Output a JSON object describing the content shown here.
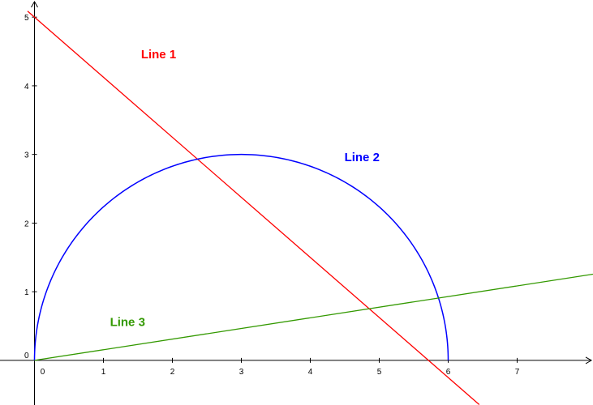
{
  "chart_data": {
    "type": "line",
    "title": "",
    "xlabel": "",
    "ylabel": "",
    "xlim": [
      -0.5,
      8.1
    ],
    "ylim": [
      -0.65,
      5.25
    ],
    "x_ticks": [
      0,
      1,
      2,
      3,
      4,
      5,
      6,
      7
    ],
    "y_ticks": [
      0,
      1,
      2,
      3,
      4,
      5
    ],
    "x_tick_labels": [
      "0",
      "1",
      "2",
      "3",
      "4",
      "5",
      "6",
      "7"
    ],
    "y_tick_labels": [
      "0",
      "1",
      "2",
      "3",
      "4",
      "5"
    ],
    "grid": false,
    "axes_color": "#000000",
    "series": [
      {
        "name": "Line 1",
        "kind": "line",
        "equation": "y = 5 - 0.875x",
        "color": "#ff0000",
        "x": [
          -0.1,
          6.45
        ],
        "y": [
          5.0875,
          -0.64375
        ]
      },
      {
        "name": "Line 2",
        "kind": "semicircle",
        "equation": "(x - 3)^2 + y^2 = 9, y >= 0",
        "color": "#0000ff",
        "center": [
          3,
          0
        ],
        "radius": 3
      },
      {
        "name": "Line 3",
        "kind": "line",
        "equation": "y = 0.155x",
        "color": "#339900",
        "x": [
          0,
          8.1
        ],
        "y": [
          0,
          1.2555
        ]
      }
    ],
    "annotations": [
      {
        "text": "Line 1",
        "color": "#ff0000",
        "x": 1.8,
        "y": 4.4
      },
      {
        "text": "Line 2",
        "color": "#0000ff",
        "x": 4.75,
        "y": 2.9
      },
      {
        "text": "Line 3",
        "color": "#339900",
        "x": 1.35,
        "y": 0.5
      }
    ]
  }
}
